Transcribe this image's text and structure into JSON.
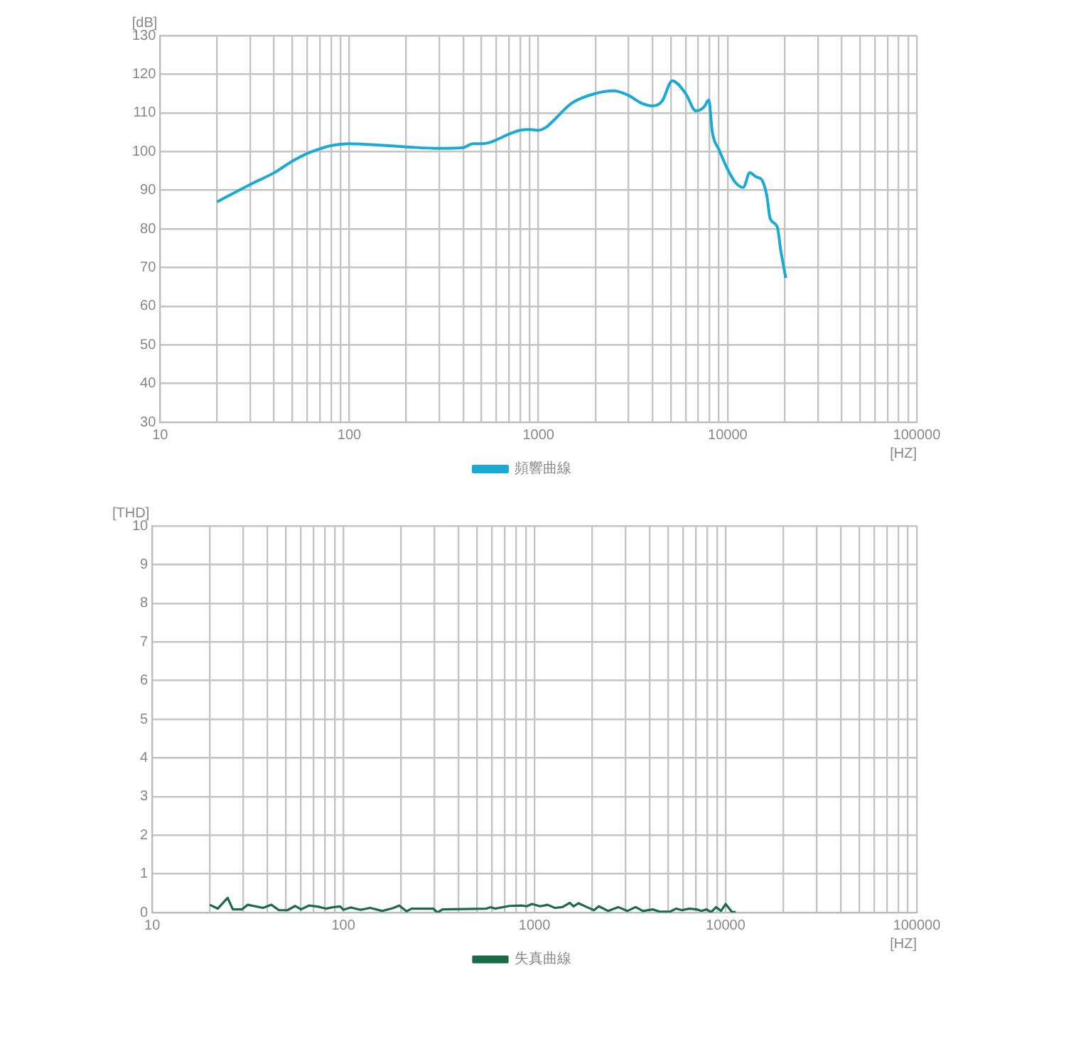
{
  "chart_data": [
    {
      "type": "line",
      "xlabel": "[HZ]",
      "ylabel": "[dB]",
      "log": "x",
      "grid": true,
      "legend": "bottom",
      "marker": "none",
      "xlim": [
        10,
        100000
      ],
      "ylim": [
        30,
        130
      ],
      "xticks": [
        10,
        {
          "value": 20,
          "label": null
        },
        {
          "value": 30,
          "label": null
        },
        {
          "value": 40,
          "label": null
        },
        {
          "value": 50,
          "label": null
        },
        {
          "value": 60,
          "label": null
        },
        {
          "value": 70,
          "label": null
        },
        {
          "value": 80,
          "label": null
        },
        {
          "value": 90,
          "label": null
        },
        100,
        {
          "value": 200,
          "label": null
        },
        {
          "value": 300,
          "label": null
        },
        {
          "value": 400,
          "label": null
        },
        {
          "value": 500,
          "label": null
        },
        {
          "value": 600,
          "label": null
        },
        {
          "value": 700,
          "label": null
        },
        {
          "value": 800,
          "label": null
        },
        {
          "value": 900,
          "label": null
        },
        1000,
        {
          "value": 2000,
          "label": null
        },
        {
          "value": 3000,
          "label": null
        },
        {
          "value": 4000,
          "label": null
        },
        {
          "value": 5000,
          "label": null
        },
        {
          "value": 6000,
          "label": null
        },
        {
          "value": 7000,
          "label": null
        },
        {
          "value": 8000,
          "label": null
        },
        {
          "value": 9000,
          "label": null
        },
        10000,
        {
          "value": 20000,
          "label": null
        },
        {
          "value": 30000,
          "label": null
        },
        {
          "value": 40000,
          "label": null
        },
        {
          "value": 50000,
          "label": null
        },
        {
          "value": 60000,
          "label": null
        },
        {
          "value": 70000,
          "label": null
        },
        {
          "value": 80000,
          "label": null
        },
        {
          "value": 90000,
          "label": null
        },
        100000
      ],
      "yticks": [
        30,
        40,
        50,
        60,
        70,
        80,
        90,
        100,
        110,
        120,
        130
      ],
      "series": [
        {
          "name": "頻響曲線",
          "color": "#1aaad4",
          "x": [
            20,
            30,
            40,
            50,
            60,
            70,
            80,
            100,
            150,
            200,
            300,
            400,
            450,
            500,
            550,
            700,
            800,
            900,
            1000,
            1100,
            1200,
            1500,
            2000,
            2500,
            3000,
            3500,
            4000,
            4500,
            5100,
            6000,
            6800,
            7500,
            7950,
            8300,
            9000,
            10000,
            11000,
            12100,
            13100,
            14200,
            15100,
            16100,
            16800,
            18300,
            19100,
            20300
          ],
          "values": [
            87,
            91.5,
            94.5,
            97.5,
            99.5,
            100.7,
            101.5,
            102,
            101.6,
            101.2,
            100.8,
            101,
            102,
            102,
            102.3,
            104.5,
            105.5,
            105.7,
            105.5,
            106.3,
            108,
            112.5,
            115,
            115.7,
            114.5,
            112.5,
            111.8,
            113,
            118.3,
            115,
            110.5,
            111.5,
            113.3,
            105,
            100.5,
            95.4,
            92,
            90.7,
            94.5,
            93.4,
            92.8,
            88.7,
            82.6,
            80.5,
            74.4,
            67.3
          ]
        }
      ]
    },
    {
      "type": "line",
      "xlabel": "[HZ]",
      "ylabel": "[THD]",
      "log": "x",
      "grid": true,
      "legend": "bottom",
      "marker": "none",
      "xlim": [
        10,
        100000
      ],
      "ylim": [
        0,
        10
      ],
      "xticks": [
        10,
        {
          "value": 20,
          "label": null
        },
        {
          "value": 30,
          "label": null
        },
        {
          "value": 40,
          "label": null
        },
        {
          "value": 50,
          "label": null
        },
        {
          "value": 60,
          "label": null
        },
        {
          "value": 70,
          "label": null
        },
        {
          "value": 80,
          "label": null
        },
        {
          "value": 90,
          "label": null
        },
        100,
        {
          "value": 200,
          "label": null
        },
        {
          "value": 300,
          "label": null
        },
        {
          "value": 400,
          "label": null
        },
        {
          "value": 500,
          "label": null
        },
        {
          "value": 600,
          "label": null
        },
        {
          "value": 700,
          "label": null
        },
        {
          "value": 800,
          "label": null
        },
        {
          "value": 900,
          "label": null
        },
        1000,
        {
          "value": 2000,
          "label": null
        },
        {
          "value": 3000,
          "label": null
        },
        {
          "value": 4000,
          "label": null
        },
        {
          "value": 5000,
          "label": null
        },
        {
          "value": 6000,
          "label": null
        },
        {
          "value": 7000,
          "label": null
        },
        {
          "value": 8000,
          "label": null
        },
        {
          "value": 9000,
          "label": null
        },
        10000,
        {
          "value": 20000,
          "label": null
        },
        {
          "value": 30000,
          "label": null
        },
        {
          "value": 40000,
          "label": null
        },
        {
          "value": 50000,
          "label": null
        },
        {
          "value": 60000,
          "label": null
        },
        {
          "value": 70000,
          "label": null
        },
        {
          "value": 80000,
          "label": null
        },
        {
          "value": 90000,
          "label": null
        },
        100000
      ],
      "yticks": [
        0,
        1,
        2,
        3,
        4,
        5,
        6,
        7,
        8,
        9,
        10
      ],
      "series": [
        {
          "name": "失真曲線",
          "color": "#1a6b47",
          "x": [
            20,
            22,
            24.8,
            26.4,
            29.4,
            31.6,
            38,
            42,
            46,
            51,
            56,
            60,
            66,
            74,
            81,
            87,
            96,
            100,
            109,
            123,
            138,
            160,
            181,
            196,
            214,
            227,
            296,
            310,
            330,
            560,
            590,
            620,
            740,
            860,
            910,
            970,
            1070,
            1170,
            1280,
            1400,
            1530,
            1600,
            1700,
            1880,
            2050,
            2170,
            2430,
            2740,
            3060,
            3380,
            3690,
            4150,
            4540,
            5100,
            5500,
            5890,
            6450,
            7050,
            7480,
            7940,
            8400,
            8920,
            9460,
            10000,
            10800,
            11300
          ],
          "values": [
            0.2,
            0.1,
            0.38,
            0.08,
            0.08,
            0.2,
            0.12,
            0.2,
            0.06,
            0.06,
            0.17,
            0.08,
            0.18,
            0.15,
            0.1,
            0.13,
            0.16,
            0.07,
            0.13,
            0.07,
            0.12,
            0.04,
            0.11,
            0.18,
            0.03,
            0.1,
            0.1,
            0,
            0.08,
            0.1,
            0.14,
            0.1,
            0.17,
            0.18,
            0.16,
            0.22,
            0.16,
            0.2,
            0.12,
            0.14,
            0.25,
            0.16,
            0.24,
            0.14,
            0.06,
            0.16,
            0.04,
            0.14,
            0.04,
            0.14,
            0.04,
            0.08,
            0.02,
            0.02,
            0.1,
            0.06,
            0.1,
            0.08,
            0.04,
            0.08,
            0.01,
            0.14,
            0.04,
            0.22,
            0.01,
            0.01
          ]
        }
      ]
    }
  ]
}
